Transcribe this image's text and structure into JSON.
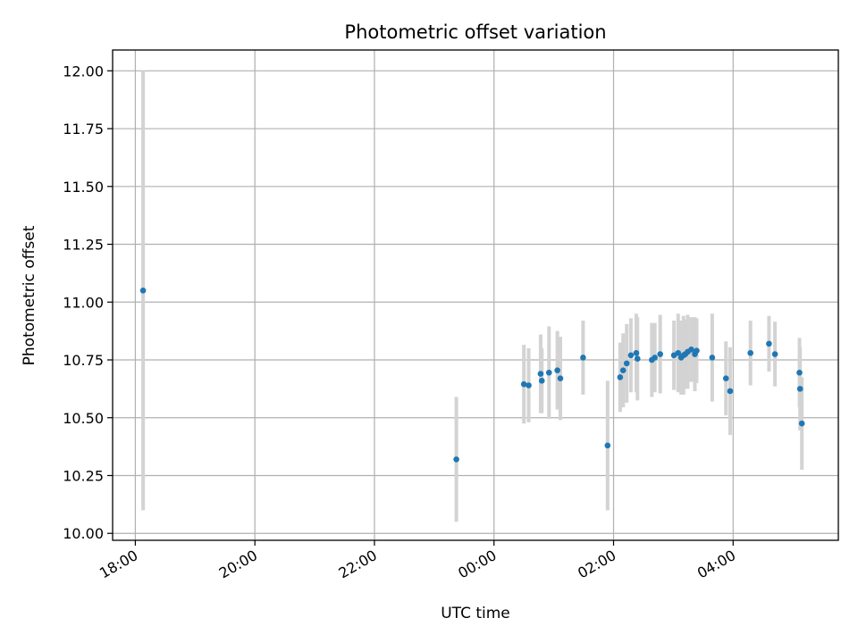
{
  "chart_data": {
    "type": "scatter",
    "title": "Photometric offset variation",
    "xlabel": "UTC time",
    "ylabel": "Photometric offset",
    "xlim": [
      -0.38,
      11.76
    ],
    "ylim": [
      9.97,
      12.09
    ],
    "grid": true,
    "legend": "none",
    "colors": {
      "point": "#1f77b4",
      "errorbar": "#d3d3d3"
    },
    "x_ticks": [
      {
        "value": 0,
        "label": "18:00"
      },
      {
        "value": 2,
        "label": "20:00"
      },
      {
        "value": 4,
        "label": "22:00"
      },
      {
        "value": 6,
        "label": "00:00"
      },
      {
        "value": 8,
        "label": "02:00"
      },
      {
        "value": 10,
        "label": "04:00"
      }
    ],
    "y_ticks": [
      {
        "value": 10.0,
        "label": "10.00"
      },
      {
        "value": 10.25,
        "label": "10.25"
      },
      {
        "value": 10.5,
        "label": "10.50"
      },
      {
        "value": 10.75,
        "label": "10.75"
      },
      {
        "value": 11.0,
        "label": "11.00"
      },
      {
        "value": 11.25,
        "label": "11.25"
      },
      {
        "value": 11.5,
        "label": "11.50"
      },
      {
        "value": 11.75,
        "label": "11.75"
      },
      {
        "value": 12.0,
        "label": "12.00"
      }
    ],
    "series": [
      {
        "name": "offset",
        "x_hours_since_1800": [
          0.13,
          5.37,
          6.5,
          6.58,
          6.78,
          6.8,
          6.92,
          7.06,
          7.11,
          7.49,
          7.9,
          8.11,
          8.16,
          8.22,
          8.29,
          8.38,
          8.4,
          8.64,
          8.69,
          8.78,
          9.01,
          9.08,
          9.13,
          9.17,
          9.2,
          9.24,
          9.3,
          9.36,
          9.39,
          9.65,
          9.88,
          9.95,
          10.29,
          10.6,
          10.7,
          11.11,
          11.12,
          11.15
        ],
        "y": [
          11.05,
          10.32,
          10.645,
          10.64,
          10.69,
          10.66,
          10.695,
          10.705,
          10.67,
          10.76,
          10.38,
          10.675,
          10.705,
          10.735,
          10.77,
          10.78,
          10.755,
          10.75,
          10.76,
          10.775,
          10.77,
          10.78,
          10.76,
          10.77,
          10.775,
          10.785,
          10.795,
          10.775,
          10.79,
          10.76,
          10.67,
          10.615,
          10.78,
          10.82,
          10.775,
          10.695,
          10.625,
          10.475
        ],
        "yerr": [
          0.95,
          0.27,
          0.17,
          0.16,
          0.17,
          0.14,
          0.2,
          0.17,
          0.18,
          0.16,
          0.28,
          0.15,
          0.16,
          0.17,
          0.16,
          0.17,
          0.18,
          0.16,
          0.15,
          0.17,
          0.15,
          0.17,
          0.16,
          0.17,
          0.15,
          0.16,
          0.14,
          0.16,
          0.14,
          0.19,
          0.16,
          0.19,
          0.14,
          0.12,
          0.14,
          0.15,
          0.18,
          0.2
        ]
      }
    ]
  }
}
